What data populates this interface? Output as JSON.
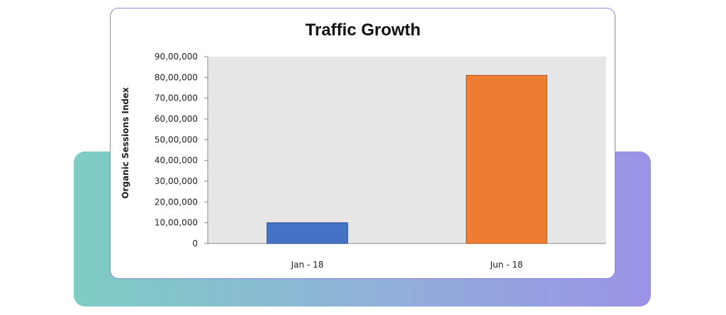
{
  "chart_data": {
    "type": "bar",
    "title": "Traffic Growth",
    "xlabel": "",
    "ylabel": "Organic Sessions Index",
    "categories": [
      "Jan - 18",
      "Jun - 18"
    ],
    "values": [
      1000000,
      8100000
    ],
    "bar_colors": [
      "#4472c4",
      "#ed7d31"
    ],
    "ylim": [
      0,
      9000000
    ],
    "y_ticks": [
      {
        "value": 0,
        "label": "0"
      },
      {
        "value": 1000000,
        "label": "10,00,000"
      },
      {
        "value": 2000000,
        "label": "20,00,000"
      },
      {
        "value": 3000000,
        "label": "30,00,000"
      },
      {
        "value": 4000000,
        "label": "40,00,000"
      },
      {
        "value": 5000000,
        "label": "50,00,000"
      },
      {
        "value": 6000000,
        "label": "60,00,000"
      },
      {
        "value": 7000000,
        "label": "70,00,000"
      },
      {
        "value": 8000000,
        "label": "80,00,000"
      },
      {
        "value": 9000000,
        "label": "90,00,000"
      }
    ],
    "grid": false,
    "legend": "none",
    "plot_background": "#e6e6e6"
  }
}
